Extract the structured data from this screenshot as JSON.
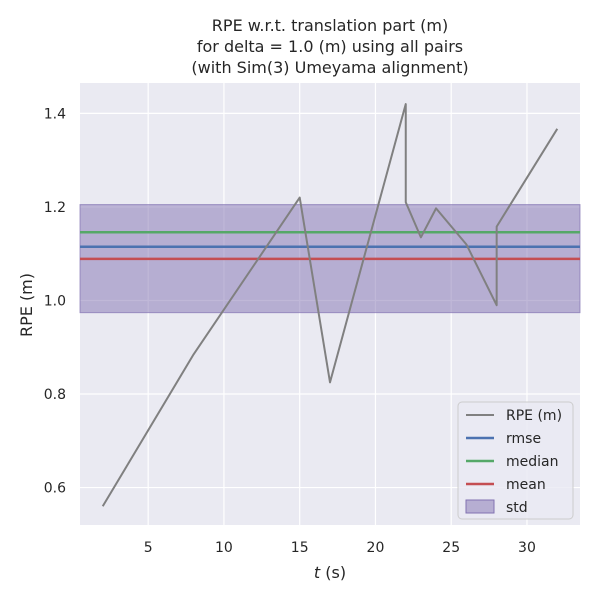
{
  "chart_data": {
    "type": "line",
    "title": [
      "RPE w.r.t. translation part (m)",
      "for delta = 1.0 (m) using all pairs",
      "(with Sim(3) Umeyama alignment)"
    ],
    "xlabel_italic": "t",
    "xlabel_rest": " (s)",
    "ylabel": "RPE (m)",
    "xlim": [
      0.5,
      33.5
    ],
    "ylim": [
      0.52,
      1.465
    ],
    "xticks": [
      5,
      10,
      15,
      20,
      25,
      30
    ],
    "xtick_labels": [
      "5",
      "10",
      "15",
      "20",
      "25",
      "30"
    ],
    "yticks": [
      0.6,
      0.8,
      1.0,
      1.2,
      1.4
    ],
    "ytick_labels": [
      "0.6",
      "0.8",
      "1.0",
      "1.2",
      "1.4"
    ],
    "grid": true,
    "legend_position": "lower-right",
    "series": [
      {
        "name": "RPE (m)",
        "color": "#808080",
        "x": [
          2,
          8,
          15,
          17,
          22,
          22,
          23,
          24,
          26,
          28,
          28,
          32
        ],
        "y": [
          0.56,
          0.885,
          1.22,
          0.825,
          1.42,
          1.21,
          1.135,
          1.197,
          1.12,
          0.99,
          1.158,
          1.367
        ]
      }
    ],
    "stats": {
      "rmse": {
        "label": "rmse",
        "value": 1.115,
        "color": "#4c72b0"
      },
      "median": {
        "label": "median",
        "value": 1.146,
        "color": "#55a868"
      },
      "mean": {
        "label": "mean",
        "value": 1.089,
        "color": "#c44e52"
      },
      "std": {
        "label": "std",
        "range": [
          0.974,
          1.205
        ],
        "color": "#8172b2"
      }
    }
  }
}
